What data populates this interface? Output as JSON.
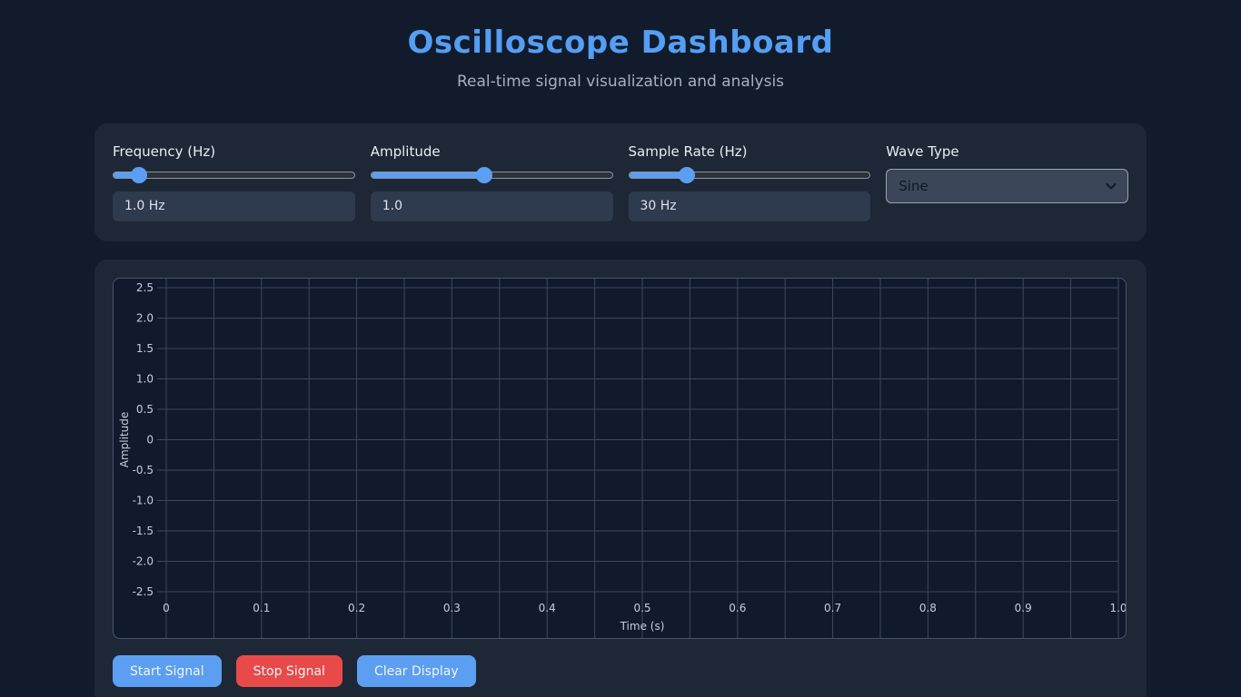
{
  "header": {
    "title": "Oscilloscope Dashboard",
    "subtitle": "Real-time signal visualization and analysis"
  },
  "controls": {
    "frequency": {
      "label": "Frequency (Hz)",
      "value": "1.0 Hz",
      "slider_percent": 11
    },
    "amplitude": {
      "label": "Amplitude",
      "value": "1.0",
      "slider_percent": 47
    },
    "sample_rate": {
      "label": "Sample Rate (Hz)",
      "value": "30 Hz",
      "slider_percent": 24
    },
    "wave_type": {
      "label": "Wave Type",
      "selected": "Sine"
    }
  },
  "chart_data": {
    "type": "line",
    "title": "",
    "xlabel": "Time (s)",
    "ylabel": "Amplitude",
    "xlim": [
      0,
      1.0
    ],
    "ylim": [
      -2.5,
      2.5
    ],
    "x_ticks": {
      "values": [
        0,
        0.1,
        0.2,
        0.3,
        0.4,
        0.5,
        0.6,
        0.7,
        0.8,
        0.9,
        1.0
      ],
      "labels": [
        "0",
        "0.1",
        "0.2",
        "0.3",
        "0.4",
        "0.5",
        "0.6",
        "0.7",
        "0.8",
        "0.9",
        "1.0"
      ]
    },
    "y_ticks": {
      "values": [
        2.5,
        2.0,
        1.5,
        1.0,
        0.5,
        0,
        -0.5,
        -1.0,
        -1.5,
        -2.0,
        -2.5
      ],
      "labels": [
        "2.5",
        "2.0",
        "1.5",
        "1.0",
        "0.5",
        "0",
        "-0.5",
        "-1.0",
        "-1.5",
        "-2.0",
        "-2.5"
      ]
    },
    "x_minor_step": 0.05,
    "grid": true,
    "legend": false,
    "series": []
  },
  "buttons": {
    "start": {
      "label": "Start Signal"
    },
    "stop": {
      "label": "Stop Signal"
    },
    "clear": {
      "label": "Clear Display"
    }
  },
  "colors": {
    "accent_blue": "#5c9ff2",
    "title_blue": "#549ef3",
    "danger_red": "#e84a4a",
    "page_bg": "#111b2c",
    "panel_bg": "#1d2736",
    "chart_bg": "#101a2c",
    "gridline": "#3d485c",
    "tick_text": "#c5cedb"
  }
}
